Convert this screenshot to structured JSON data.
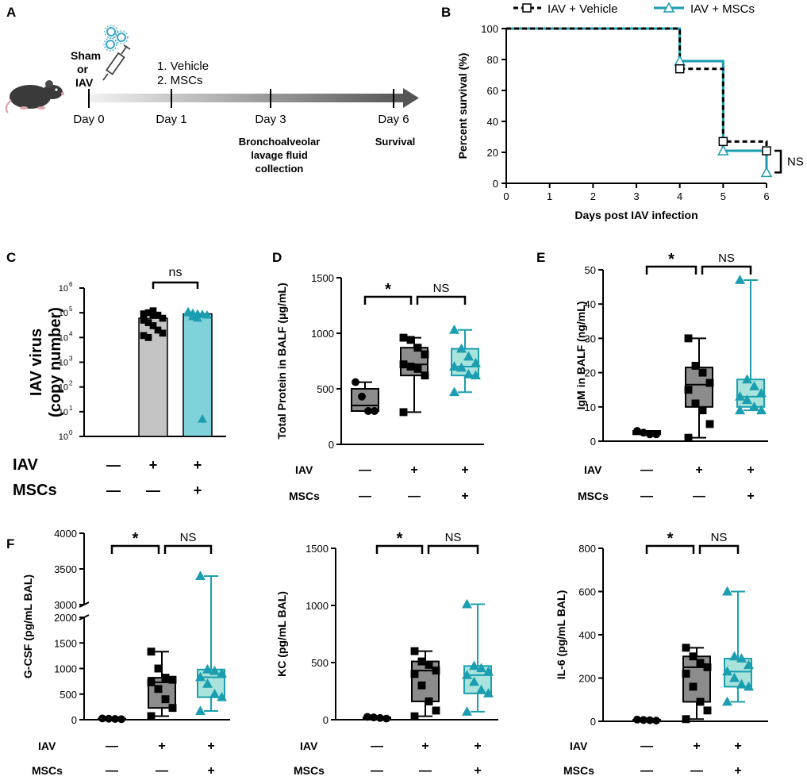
{
  "colors": {
    "vehicle_fill": "#8c8c8c",
    "msc_fill": "#a8e3dc",
    "msc_line": "#1a9eb0",
    "bar_vehicle": "#c4c4c4",
    "bar_msc": "#7fd1da",
    "black": "#000000"
  },
  "panel_labels": {
    "A": "A",
    "B": "B",
    "C": "C",
    "D": "D",
    "E": "E",
    "F": "F"
  },
  "panel_a": {
    "sham": "Sham",
    "or": "or",
    "iav": "IAV",
    "treatment_1": "1. Vehicle",
    "treatment_2": "2. MSCs",
    "day0": "Day 0",
    "day1": "Day 1",
    "day3": "Day 3",
    "day6": "Day 6",
    "balf_1": "Bronchoalveolar",
    "balf_2": "lavage fluid",
    "balf_3": "collection",
    "survival": "Survival"
  },
  "group_rows": {
    "iav_label": "IAV",
    "mscs_label": "MSCs",
    "iav": [
      "—",
      "+",
      "+"
    ],
    "mscs": [
      "—",
      "—",
      "+"
    ]
  },
  "chart_data": [
    {
      "id": "B",
      "type": "line",
      "chart_style": "kaplan-meier",
      "xlabel": "Days post IAV infection",
      "ylabel": "Percent survival (%)",
      "xlim": [
        0,
        6
      ],
      "ylim": [
        0,
        100
      ],
      "xticks": [
        0,
        1,
        2,
        3,
        4,
        5,
        6
      ],
      "yticks": [
        0,
        20,
        40,
        60,
        80,
        100
      ],
      "legend": [
        "IAV + Vehicle",
        "IAV + MSCs"
      ],
      "legend_position": "top",
      "series": [
        {
          "name": "IAV + Vehicle",
          "style": "dashed",
          "marker": "square",
          "steps": [
            [
              0,
              100
            ],
            [
              4,
              100
            ],
            [
              4,
              74
            ],
            [
              5,
              74
            ],
            [
              5,
              27
            ],
            [
              6,
              27
            ],
            [
              6,
              21
            ]
          ],
          "markers": [
            [
              4,
              74
            ],
            [
              5,
              27
            ],
            [
              6,
              21
            ]
          ]
        },
        {
          "name": "IAV + MSCs",
          "style": "solid",
          "marker": "triangle",
          "steps": [
            [
              0,
              100
            ],
            [
              4,
              100
            ],
            [
              4,
              79
            ],
            [
              5,
              79
            ],
            [
              5,
              21
            ],
            [
              6,
              21
            ],
            [
              6,
              7
            ]
          ],
          "markers": [
            [
              4,
              79
            ],
            [
              5,
              21
            ],
            [
              6,
              7
            ]
          ]
        }
      ],
      "annotation": "NS"
    },
    {
      "id": "C",
      "type": "bar",
      "yscale": "log",
      "ylabel_1": "IAV virus",
      "ylabel_2": "(copy number)",
      "ylim": [
        1,
        1000000
      ],
      "yticks": [
        {
          "value": 1,
          "base": "10",
          "exp": "0"
        },
        {
          "value": 10,
          "base": "10",
          "exp": "1"
        },
        {
          "value": 100,
          "base": "10",
          "exp": "2"
        },
        {
          "value": 1000,
          "base": "10",
          "exp": "3"
        },
        {
          "value": 10000,
          "base": "10",
          "exp": "4"
        },
        {
          "value": 100000,
          "base": "10",
          "exp": "5"
        },
        {
          "value": 1000000,
          "base": "10",
          "exp": "6"
        }
      ],
      "groups": [
        {
          "name": "Sham",
          "value": null,
          "points": []
        },
        {
          "name": "IAV + Vehicle",
          "value": 60000,
          "marker": "square",
          "points": [
            90000,
            100000,
            120000,
            80000,
            60000,
            50000,
            40000,
            30000,
            20000,
            15000,
            12000,
            10000,
            85000
          ]
        },
        {
          "name": "IAV + MSCs",
          "value": 90000,
          "marker": "triangle",
          "points": [
            100000,
            95000,
            90000,
            85000,
            80000,
            110000,
            70000,
            60000,
            5
          ]
        }
      ],
      "comparisons": [
        {
          "from": 1,
          "to": 2,
          "label": "ns"
        }
      ]
    },
    {
      "id": "D",
      "type": "box",
      "ylabel": "Total Protein in BALF (μg/mL)",
      "ylim": [
        0,
        1500
      ],
      "yticks": [
        0,
        500,
        1000,
        1500
      ],
      "groups": [
        {
          "name": "Sham",
          "min": 300,
          "q1": 300,
          "median": 350,
          "q3": 500,
          "max": 560,
          "points": [
            560,
            430,
            300,
            300
          ],
          "marker": "circle"
        },
        {
          "name": "IAV + Vehicle",
          "min": 290,
          "q1": 620,
          "median": 720,
          "q3": 870,
          "max": 960,
          "points": [
            960,
            940,
            870,
            810,
            720,
            700,
            680,
            620,
            290
          ],
          "marker": "square"
        },
        {
          "name": "IAV + MSCs",
          "min": 470,
          "q1": 620,
          "median": 700,
          "q3": 860,
          "max": 1030,
          "points": [
            1030,
            860,
            790,
            730,
            700,
            690,
            630,
            620,
            470
          ],
          "marker": "triangle"
        }
      ],
      "comparisons": [
        {
          "from": 0,
          "to": 1,
          "label": "*"
        },
        {
          "from": 1,
          "to": 2,
          "label": "NS"
        }
      ]
    },
    {
      "id": "E",
      "type": "box",
      "ylabel": "IgM in BALF (ng/mL)",
      "ylim": [
        0,
        50
      ],
      "yticks": [
        0,
        10,
        20,
        30,
        40,
        50
      ],
      "groups": [
        {
          "name": "Sham",
          "min": 2,
          "q1": 2,
          "median": 2.5,
          "q3": 3,
          "max": 3,
          "points": [
            3,
            2.5,
            2,
            2
          ],
          "marker": "circle"
        },
        {
          "name": "IAV + Vehicle",
          "min": 1,
          "q1": 10,
          "median": 16.5,
          "q3": 21.5,
          "max": 30,
          "points": [
            30,
            22,
            20,
            17,
            15,
            11,
            9,
            5,
            1
          ],
          "marker": "square"
        },
        {
          "name": "IAV + MSCs",
          "min": 9,
          "q1": 10,
          "median": 13,
          "q3": 18,
          "max": 47,
          "points": [
            47,
            18,
            16,
            14,
            13,
            12,
            10,
            9,
            9
          ],
          "marker": "triangle"
        }
      ],
      "comparisons": [
        {
          "from": 0,
          "to": 1,
          "label": "*"
        },
        {
          "from": 1,
          "to": 2,
          "label": "NS"
        }
      ]
    },
    {
      "id": "F1",
      "type": "box",
      "ylabel": "G-CSF (pg/mL BAL)",
      "axis_break": true,
      "ylim_lower": [
        0,
        2000
      ],
      "ylim_upper": [
        3000,
        4000
      ],
      "yticks": [
        0,
        500,
        1000,
        1500,
        2000,
        3000,
        3500,
        4000
      ],
      "groups": [
        {
          "name": "Sham",
          "min": 10,
          "q1": 10,
          "median": 15,
          "q3": 20,
          "max": 25,
          "points": [
            25,
            20,
            15,
            10
          ],
          "marker": "circle"
        },
        {
          "name": "IAV + Vehicle",
          "min": 70,
          "q1": 230,
          "median": 730,
          "q3": 820,
          "max": 1330,
          "points": [
            1330,
            1000,
            820,
            780,
            730,
            600,
            400,
            230,
            70
          ],
          "marker": "square"
        },
        {
          "name": "IAV + MSCs",
          "min": 170,
          "q1": 440,
          "median": 830,
          "q3": 980,
          "max": 3400,
          "points": [
            3400,
            980,
            950,
            900,
            830,
            700,
            500,
            440,
            170
          ],
          "marker": "triangle"
        }
      ],
      "comparisons": [
        {
          "from": 0,
          "to": 1,
          "label": "*"
        },
        {
          "from": 1,
          "to": 2,
          "label": "NS"
        }
      ]
    },
    {
      "id": "F2",
      "type": "box",
      "ylabel": "KC (pg/mL BAL)",
      "ylim": [
        0,
        1500
      ],
      "yticks": [
        0,
        500,
        1000,
        1500
      ],
      "groups": [
        {
          "name": "Sham",
          "min": 10,
          "q1": 10,
          "median": 15,
          "q3": 20,
          "max": 25,
          "points": [
            25,
            20,
            15,
            10
          ],
          "marker": "circle"
        },
        {
          "name": "IAV + Vehicle",
          "min": 30,
          "q1": 160,
          "median": 430,
          "q3": 510,
          "max": 600,
          "points": [
            600,
            510,
            480,
            430,
            400,
            300,
            160,
            80,
            30
          ],
          "marker": "square"
        },
        {
          "name": "IAV + MSCs",
          "min": 70,
          "q1": 230,
          "median": 390,
          "q3": 470,
          "max": 1010,
          "points": [
            1010,
            470,
            450,
            420,
            390,
            330,
            260,
            230,
            70
          ],
          "marker": "triangle"
        }
      ],
      "comparisons": [
        {
          "from": 0,
          "to": 1,
          "label": "*"
        },
        {
          "from": 1,
          "to": 2,
          "label": "NS"
        }
      ]
    },
    {
      "id": "F3",
      "type": "box",
      "ylabel": "IL-6 (pg/mL BAL)",
      "ylim": [
        0,
        800
      ],
      "yticks": [
        0,
        200,
        400,
        600,
        800
      ],
      "groups": [
        {
          "name": "Sham",
          "min": 3,
          "q1": 3,
          "median": 5,
          "q3": 7,
          "max": 8,
          "points": [
            8,
            6,
            5,
            3
          ],
          "marker": "circle"
        },
        {
          "name": "IAV + Vehicle",
          "min": 10,
          "q1": 90,
          "median": 250,
          "q3": 300,
          "max": 340,
          "points": [
            340,
            300,
            270,
            250,
            220,
            160,
            90,
            50,
            10
          ],
          "marker": "square"
        },
        {
          "name": "IAV + MSCs",
          "min": 90,
          "q1": 160,
          "median": 230,
          "q3": 290,
          "max": 600,
          "points": [
            600,
            300,
            290,
            260,
            230,
            200,
            170,
            160,
            90
          ],
          "marker": "triangle"
        }
      ],
      "comparisons": [
        {
          "from": 0,
          "to": 1,
          "label": "*"
        },
        {
          "from": 1,
          "to": 2,
          "label": "NS"
        }
      ]
    }
  ]
}
